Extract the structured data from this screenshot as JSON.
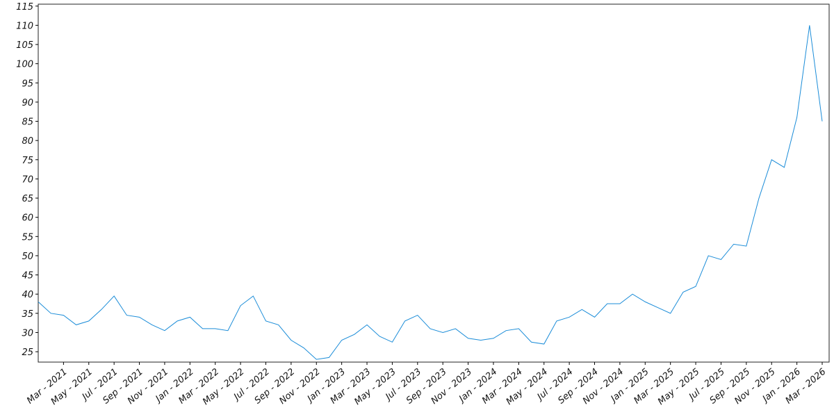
{
  "chart_data": {
    "type": "line",
    "color": "#1a8cd8",
    "grid": false,
    "x": [
      "2021-01",
      "2021-02",
      "2021-03",
      "2021-04",
      "2021-05",
      "2021-06",
      "2021-07",
      "2021-08",
      "2021-09",
      "2021-10",
      "2021-11",
      "2021-12",
      "2022-01",
      "2022-02",
      "2022-03",
      "2022-04",
      "2022-05",
      "2022-06",
      "2022-07",
      "2022-08",
      "2022-09",
      "2022-10",
      "2022-11",
      "2022-12",
      "2023-01",
      "2023-02",
      "2023-03",
      "2023-04",
      "2023-05",
      "2023-06",
      "2023-07",
      "2023-08",
      "2023-09",
      "2023-10",
      "2023-11",
      "2023-12",
      "2024-01",
      "2024-02",
      "2024-03",
      "2024-04",
      "2024-05",
      "2024-06",
      "2024-07",
      "2024-08",
      "2024-09",
      "2024-10",
      "2024-11",
      "2024-12",
      "2025-01",
      "2025-02",
      "2025-03",
      "2025-04",
      "2025-05",
      "2025-06",
      "2025-07",
      "2025-08",
      "2025-09",
      "2025-10",
      "2025-11",
      "2025-12",
      "2026-01",
      "2026-02",
      "2026-03"
    ],
    "values": [
      38,
      35,
      34.5,
      32,
      33,
      36,
      39.5,
      34.5,
      34,
      32,
      30.5,
      33,
      34,
      31,
      31,
      30.5,
      37,
      39.5,
      33,
      32,
      28,
      26,
      23,
      23.5,
      28,
      29.5,
      32,
      29,
      27.5,
      33,
      34.5,
      31,
      30,
      31,
      28.5,
      28,
      28.5,
      30.5,
      31,
      27.5,
      27,
      33,
      34,
      36,
      34,
      37.5,
      37.5,
      40,
      38,
      36.5,
      35,
      40.5,
      42,
      50,
      49,
      53,
      52.5,
      65,
      75,
      73,
      86,
      110,
      85
    ],
    "xlim": [
      "2021-01",
      "2026-03"
    ],
    "ylim": [
      22.3,
      115.5
    ],
    "yticks": [
      25,
      30,
      35,
      40,
      45,
      50,
      55,
      60,
      65,
      70,
      75,
      80,
      85,
      90,
      95,
      100,
      105,
      110,
      115
    ],
    "xticks": [
      {
        "value": "2021-03",
        "label": "Mar - 2021"
      },
      {
        "value": "2021-05",
        "label": "May - 2021"
      },
      {
        "value": "2021-07",
        "label": "Jul - 2021"
      },
      {
        "value": "2021-09",
        "label": "Sep - 2021"
      },
      {
        "value": "2021-11",
        "label": "Nov - 2021"
      },
      {
        "value": "2022-01",
        "label": "Jan - 2022"
      },
      {
        "value": "2022-03",
        "label": "Mar - 2022"
      },
      {
        "value": "2022-05",
        "label": "May - 2022"
      },
      {
        "value": "2022-07",
        "label": "Jul - 2022"
      },
      {
        "value": "2022-09",
        "label": "Sep - 2022"
      },
      {
        "value": "2022-11",
        "label": "Nov - 2022"
      },
      {
        "value": "2023-01",
        "label": "Jan - 2023"
      },
      {
        "value": "2023-03",
        "label": "Mar - 2023"
      },
      {
        "value": "2023-05",
        "label": "May - 2023"
      },
      {
        "value": "2023-07",
        "label": "Jul - 2023"
      },
      {
        "value": "2023-09",
        "label": "Sep - 2023"
      },
      {
        "value": "2023-11",
        "label": "Nov - 2023"
      },
      {
        "value": "2024-01",
        "label": "Jan - 2024"
      },
      {
        "value": "2024-03",
        "label": "Mar - 2024"
      },
      {
        "value": "2024-05",
        "label": "May - 2024"
      },
      {
        "value": "2024-07",
        "label": "Jul - 2024"
      },
      {
        "value": "2024-09",
        "label": "Sep - 2024"
      },
      {
        "value": "2024-11",
        "label": "Nov - 2024"
      },
      {
        "value": "2025-01",
        "label": "Jan - 2025"
      },
      {
        "value": "2025-03",
        "label": "Mar - 2025"
      },
      {
        "value": "2025-05",
        "label": "May - 2025"
      },
      {
        "value": "2025-07",
        "label": "Jul - 2025"
      },
      {
        "value": "2025-09",
        "label": "Sep - 2025"
      },
      {
        "value": "2025-11",
        "label": "Nov - 2025"
      },
      {
        "value": "2026-01",
        "label": "Jan - 2026"
      },
      {
        "value": "2026-03",
        "label": "Mar - 2026"
      }
    ]
  }
}
